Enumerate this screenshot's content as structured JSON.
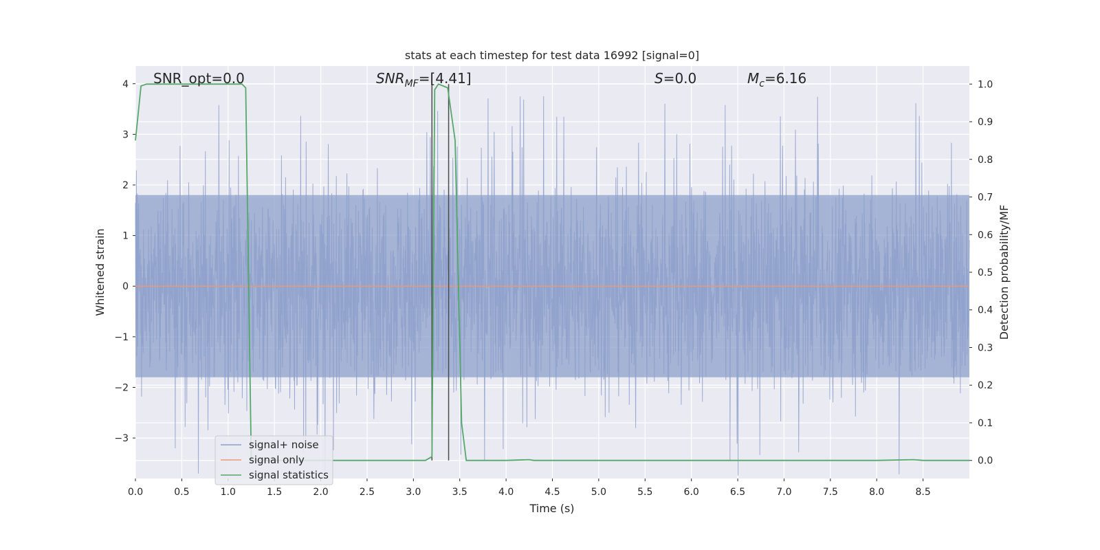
{
  "chart_data": {
    "type": "line",
    "title": "stats at each timestep for test data 16992 [signal=0]",
    "xlabel": "Time (s)",
    "ylabel": "Whitened strain",
    "y2label": "Detection probability/MF",
    "xlim": [
      0.0,
      9.0
    ],
    "ylim": [
      -3.8,
      4.35
    ],
    "y2lim": [
      -0.048,
      1.048
    ],
    "xticks": [
      "0.0",
      "0.5",
      "1.0",
      "1.5",
      "2.0",
      "2.5",
      "3.0",
      "3.5",
      "4.0",
      "4.5",
      "5.0",
      "5.5",
      "6.0",
      "6.5",
      "7.0",
      "7.5",
      "8.0",
      "8.5"
    ],
    "yticks": [
      "−3",
      "−2",
      "−1",
      "0",
      "1",
      "2",
      "3",
      "4"
    ],
    "y2ticks": [
      "0.0",
      "0.1",
      "0.2",
      "0.3",
      "0.4",
      "0.5",
      "0.6",
      "0.7",
      "0.8",
      "0.9",
      "1.0"
    ],
    "grid": true,
    "legend_position": "lower-left",
    "annotations": {
      "snr_opt": "SNR_opt=0.0",
      "snr_mf": "SNR_MF=[4.41]",
      "s": "S=0.0",
      "mc": "M_c=6.16"
    },
    "vlines": [
      3.2,
      3.38
    ],
    "series": [
      {
        "name": "signal+ noise",
        "color": "#8da0cb",
        "axis": "left",
        "description": "whitened noise fluctuating roughly between -2.5 and 2.5 with spikes near ±3.8",
        "envelope": {
          "typical_min": -2.5,
          "typical_max": 2.5,
          "extreme": 3.8
        }
      },
      {
        "name": "signal only",
        "color": "#e5997a",
        "axis": "left",
        "x": [
          0.0,
          9.0
        ],
        "y": [
          0.0,
          0.0
        ]
      },
      {
        "name": "signal statistics",
        "color": "#55a868",
        "axis": "right",
        "x": [
          0.0,
          0.06,
          0.12,
          0.5,
          1.0,
          1.15,
          1.19,
          1.25,
          1.5,
          2.0,
          2.5,
          3.0,
          3.13,
          3.2,
          3.23,
          3.27,
          3.32,
          3.37,
          3.45,
          3.52,
          3.57,
          3.6,
          4.0,
          4.25,
          4.3,
          5.0,
          6.0,
          7.0,
          8.0,
          8.4,
          8.5,
          9.0
        ],
        "y": [
          0.85,
          0.995,
          1.0,
          1.0,
          1.0,
          1.0,
          0.99,
          0.0,
          0.0,
          0.0,
          0.0,
          0.0,
          0.0,
          0.01,
          0.985,
          1.0,
          0.995,
          0.99,
          0.85,
          0.1,
          0.0,
          0.0,
          0.0,
          0.002,
          0.0,
          0.0,
          0.0,
          0.0,
          0.0,
          0.002,
          0.0,
          0.0
        ]
      }
    ]
  }
}
